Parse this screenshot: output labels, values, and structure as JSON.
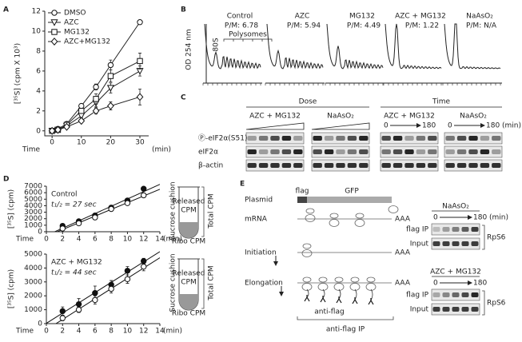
{
  "panel_labels": [
    "A",
    "B",
    "C",
    "D",
    "E"
  ],
  "chart_data": [
    {
      "type": "line",
      "x_label": "Time",
      "x_unit": "(min)",
      "y_label": "[³⁵S] (cpm X 10³)",
      "x": [
        0,
        2,
        5,
        10,
        15,
        20,
        30
      ],
      "xlim": [
        -2.5,
        33
      ],
      "xticks": [
        0,
        10,
        20,
        30
      ],
      "ylim": [
        -0.5,
        12
      ],
      "yticks": [
        0,
        2,
        4,
        6,
        8,
        10,
        12
      ],
      "legend": "upper left",
      "fit": false,
      "series": [
        {
          "name": "DMSO",
          "color": "#222222",
          "marker": "circle-open",
          "values": [
            0,
            0.2,
            0.7,
            2.5,
            4.4,
            6.6,
            10.9
          ],
          "errors": [
            0,
            0,
            0.1,
            0.2,
            0.3,
            0.5,
            0
          ]
        },
        {
          "name": "AZC",
          "color": "#222222",
          "marker": "triangle-down-open",
          "values": [
            0,
            0.1,
            0.5,
            1.5,
            2.8,
            4.3,
            6.0
          ],
          "errors": [
            0,
            0,
            0.1,
            0.2,
            0.4,
            0.5,
            0.5
          ]
        },
        {
          "name": "MG132",
          "color": "#222222",
          "marker": "square-open",
          "values": [
            0,
            0.1,
            0.6,
            2.0,
            3.2,
            5.5,
            7.0
          ],
          "errors": [
            0,
            0,
            0.1,
            0.2,
            0.5,
            0.6,
            0.8
          ]
        },
        {
          "name": "AZC+MG132",
          "color": "#222222",
          "marker": "diamond-open",
          "values": [
            0,
            0.1,
            0.4,
            1.0,
            2.0,
            2.5,
            3.4
          ],
          "errors": [
            0,
            0,
            0.1,
            0.2,
            0.3,
            0.4,
            0.8
          ]
        }
      ]
    },
    {
      "type": "line",
      "title": "Control",
      "annotation": "t₁/₂ = 27 sec",
      "x_label": "Time",
      "x_unit": "(min)",
      "y_label": "[³⁵S] (cpm)",
      "x": [
        2,
        4,
        6,
        8,
        10,
        12
      ],
      "xlim": [
        0,
        14
      ],
      "xticks": [
        0,
        2,
        4,
        6,
        8,
        10,
        12,
        14
      ],
      "ylim": [
        0,
        7000
      ],
      "yticks": [
        0,
        1000,
        2000,
        3000,
        4000,
        5000,
        6000,
        7000
      ],
      "fit": true,
      "series": [
        {
          "color": "#111111",
          "marker": "circle-filled",
          "values": [
            900,
            1600,
            2500,
            3700,
            4800,
            6600
          ],
          "errors": [
            300,
            200,
            200,
            200,
            300,
            200
          ]
        },
        {
          "color": "#111111",
          "marker": "circle-open",
          "values": [
            500,
            1300,
            2200,
            3500,
            4400,
            5600
          ],
          "errors": [
            200,
            200,
            200,
            300,
            200,
            300
          ]
        }
      ]
    },
    {
      "type": "line",
      "title": "AZC + MG132",
      "annotation": "t₁/₂ = 44 sec",
      "x_label": "Time",
      "x_unit": "(min)",
      "y_label": "[³⁵S] (cpm)",
      "x": [
        2,
        4,
        6,
        8,
        10,
        12
      ],
      "xlim": [
        0,
        14
      ],
      "xticks": [
        0,
        2,
        4,
        6,
        8,
        10,
        12,
        14
      ],
      "ylim": [
        0,
        5000
      ],
      "yticks": [
        0,
        1000,
        2000,
        3000,
        4000,
        5000
      ],
      "fit": true,
      "series": [
        {
          "color": "#111111",
          "marker": "circle-filled",
          "values": [
            900,
            1400,
            2200,
            2800,
            3800,
            4500
          ],
          "errors": [
            300,
            400,
            500,
            300,
            300,
            200
          ]
        },
        {
          "color": "#111111",
          "marker": "circle-open",
          "values": [
            400,
            1000,
            1700,
            2500,
            3200,
            4100
          ],
          "errors": [
            200,
            200,
            300,
            300,
            300,
            300
          ]
        }
      ]
    }
  ],
  "panel_b": {
    "y_label": "OD 254 nm",
    "peak": "80S",
    "polysomes": "Polysomes",
    "profiles": [
      {
        "name": "Control",
        "ratio": "P/M: 6.78"
      },
      {
        "name": "AZC",
        "ratio": "P/M: 5.94"
      },
      {
        "name": "MG132",
        "ratio": "P/M: 4.49"
      },
      {
        "name": "AZC + MG132",
        "ratio": "P/M: 1.22"
      },
      {
        "name": "NaAsO₂",
        "ratio": "P/M: N/A"
      }
    ]
  },
  "panel_c": {
    "dose": "Dose",
    "time": "Time",
    "groups": [
      "AZC + MG132",
      "NaAsO₂",
      "AZC + MG132",
      "NaAsO₂"
    ],
    "time_start": [
      "0",
      "0"
    ],
    "time_end": [
      "180",
      "180"
    ],
    "time_unit": "(min)",
    "rows": [
      "Ⓟ-eIF2α(S51)",
      "eIF2α",
      "β-actin"
    ]
  },
  "panel_d": {
    "tubes": [
      {
        "cushion": "Sucrose cushion",
        "released": [
          "Released",
          "CPM"
        ],
        "ribo": "Ribo CPM",
        "total": "Total CPM"
      },
      {
        "cushion": "Sucrose cushion",
        "released": [
          "Released",
          "CPM"
        ],
        "ribo": "Ribo CPM",
        "total": "Total CPM"
      }
    ]
  },
  "panel_e": {
    "plasmid": "Plasmid",
    "flag": "flag",
    "gfp": "GFP",
    "mrna": "mRNA",
    "poly_a": [
      "AAA",
      "AAA",
      "AAA"
    ],
    "initiation": "Initiation",
    "elongation": "Elongation",
    "antibody": "anti-flag",
    "ip": "anti-flag IP",
    "blots": [
      {
        "treatment": "NaAsO₂",
        "start": "0",
        "end": "180",
        "unit": "(min)",
        "rows": [
          "flag IP",
          "Input"
        ],
        "protein": "RpS6"
      },
      {
        "treatment": "AZC + MG132",
        "start": "0",
        "end": "180",
        "rows": [
          "flag IP",
          "Input"
        ],
        "protein": "RpS6"
      }
    ]
  }
}
